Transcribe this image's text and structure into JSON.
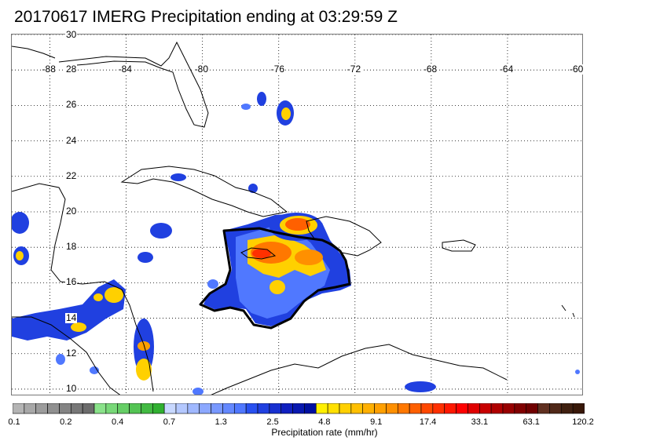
{
  "title": "20170617 IMERG Precipitation ending at 03:29:59 Z",
  "map": {
    "lon_range": [
      -90,
      -60
    ],
    "lat_range": [
      9.6,
      30
    ],
    "lon_ticks": [
      -88,
      -84,
      -80,
      -76,
      -72,
      -68,
      -64,
      -60
    ],
    "lat_ticks": [
      10,
      12,
      14,
      16,
      18,
      20,
      22,
      24,
      26,
      28,
      30
    ],
    "lon_tick_labels": [
      "-88",
      "-84",
      "-80",
      "-76",
      "-72",
      "-68",
      "-64",
      "-60"
    ],
    "lat_tick_labels": [
      "10",
      "12",
      "14",
      "16",
      "18",
      "20",
      "22",
      "24",
      "26",
      "28",
      "30"
    ],
    "gridlines": true
  },
  "colorbar": {
    "title": "Precipitation rate (mm/hr)",
    "labels": [
      "0.1",
      "0.2",
      "0.4",
      "0.7",
      "1.3",
      "2.5",
      "4.8",
      "9.1",
      "17.4",
      "33.1",
      "63.1",
      "120.2"
    ],
    "colors": [
      "#b4b4b4",
      "#a8a8a8",
      "#9c9c9c",
      "#909090",
      "#848484",
      "#787878",
      "#6c6c6c",
      "#8ae28a",
      "#78d878",
      "#66ce66",
      "#54c454",
      "#42ba42",
      "#30b030",
      "#c8d8ff",
      "#b4c8ff",
      "#a0b8ff",
      "#8ca8ff",
      "#7898ff",
      "#6488ff",
      "#5078ff",
      "#2850f0",
      "#2040e0",
      "#1830d0",
      "#1020c0",
      "#0818b0",
      "#0010a0",
      "#fff000",
      "#ffe000",
      "#ffd000",
      "#ffc000",
      "#ffb000",
      "#ffa000",
      "#ff9000",
      "#ff7800",
      "#ff6000",
      "#ff4800",
      "#ff3000",
      "#ff1800",
      "#ff0000",
      "#e00000",
      "#c80000",
      "#b00000",
      "#980000",
      "#800000",
      "#700000",
      "#603020",
      "#502818",
      "#402010",
      "#381808"
    ]
  }
}
